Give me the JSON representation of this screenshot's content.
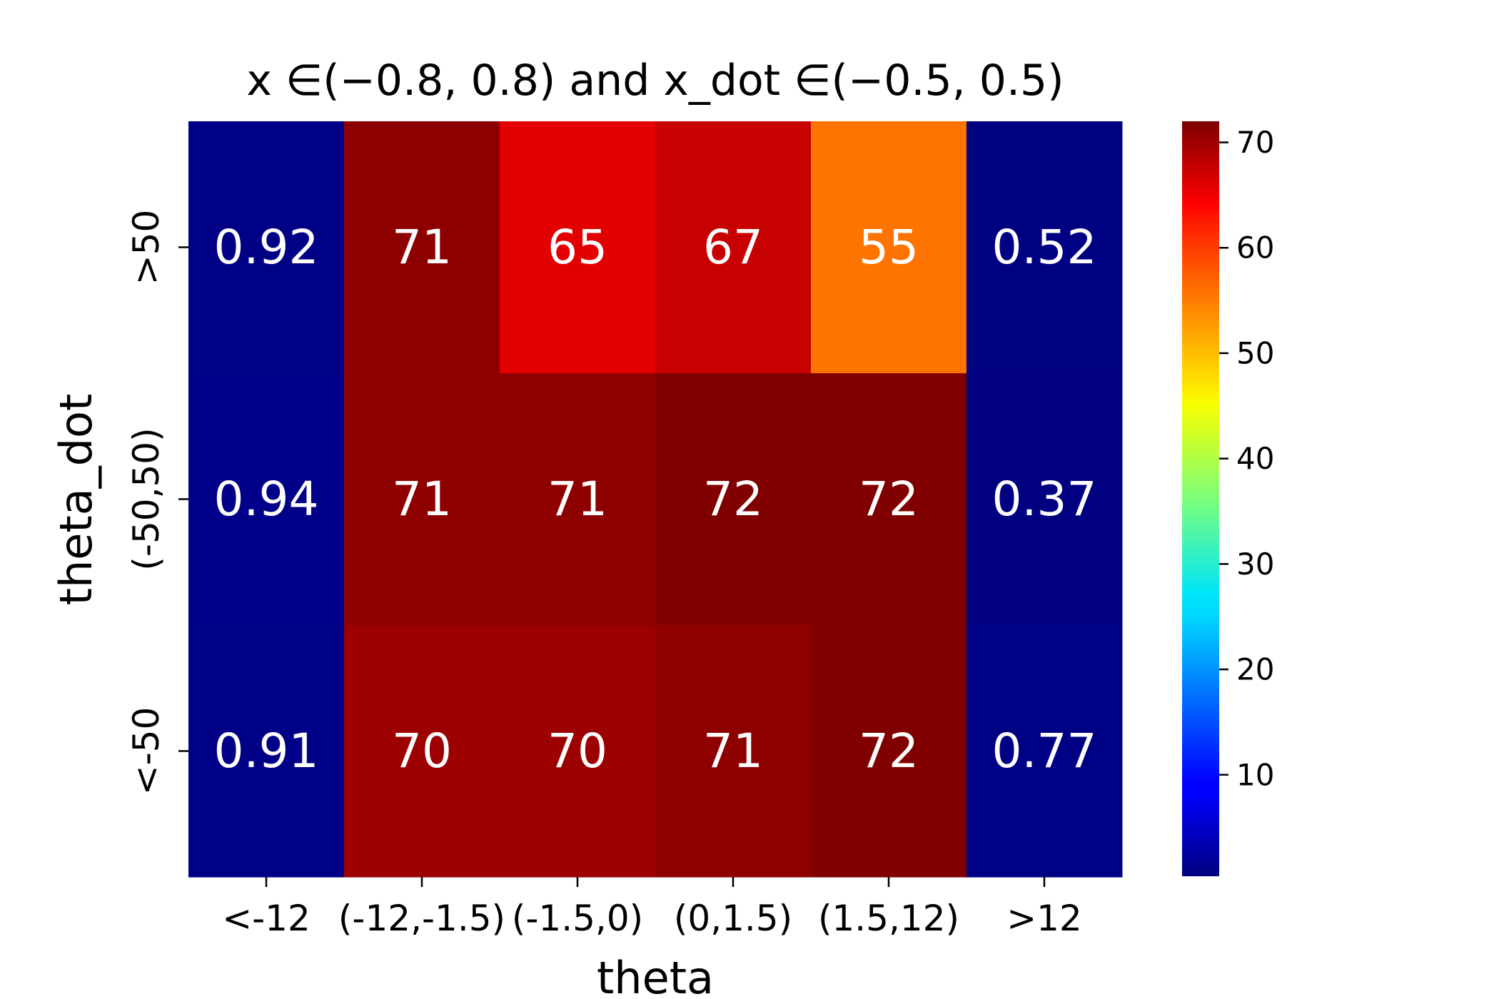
{
  "chart_data": {
    "type": "heatmap",
    "title": "x $\\in(-0.8, 0.8)$ and x_dot $\\in(-0.5, 0.5)$",
    "title_display": "x  ∈(−0.8, 0.8) and x_dot  ∈(−0.5, 0.5)",
    "xlabel": "theta",
    "ylabel": "theta_dot",
    "x_categories": [
      "<-12",
      "(-12,-1.5)",
      "(-1.5,0)",
      "(0,1.5)",
      "(1.5,12)",
      ">12"
    ],
    "y_categories": [
      ">50",
      "(-50,50)",
      "<-50"
    ],
    "values": [
      [
        0.92,
        71,
        65,
        67,
        55,
        0.52
      ],
      [
        0.94,
        71,
        71,
        72,
        72,
        0.37
      ],
      [
        0.91,
        70,
        70,
        71,
        72,
        0.77
      ]
    ],
    "cell_labels": [
      [
        "0.92",
        "71",
        "65",
        "67",
        "55",
        "0.52"
      ],
      [
        "0.94",
        "71",
        "71",
        "72",
        "72",
        "0.37"
      ],
      [
        "0.91",
        "70",
        "70",
        "71",
        "72",
        "0.77"
      ]
    ],
    "colormap": "jet",
    "colorbar": {
      "min": 0.37,
      "max": 72,
      "ticks": [
        10,
        20,
        30,
        40,
        50,
        60,
        70
      ],
      "tick_labels": [
        "10",
        "20",
        "30",
        "40",
        "50",
        "60",
        "70"
      ]
    },
    "grid": false,
    "legend": "colorbar-right"
  }
}
